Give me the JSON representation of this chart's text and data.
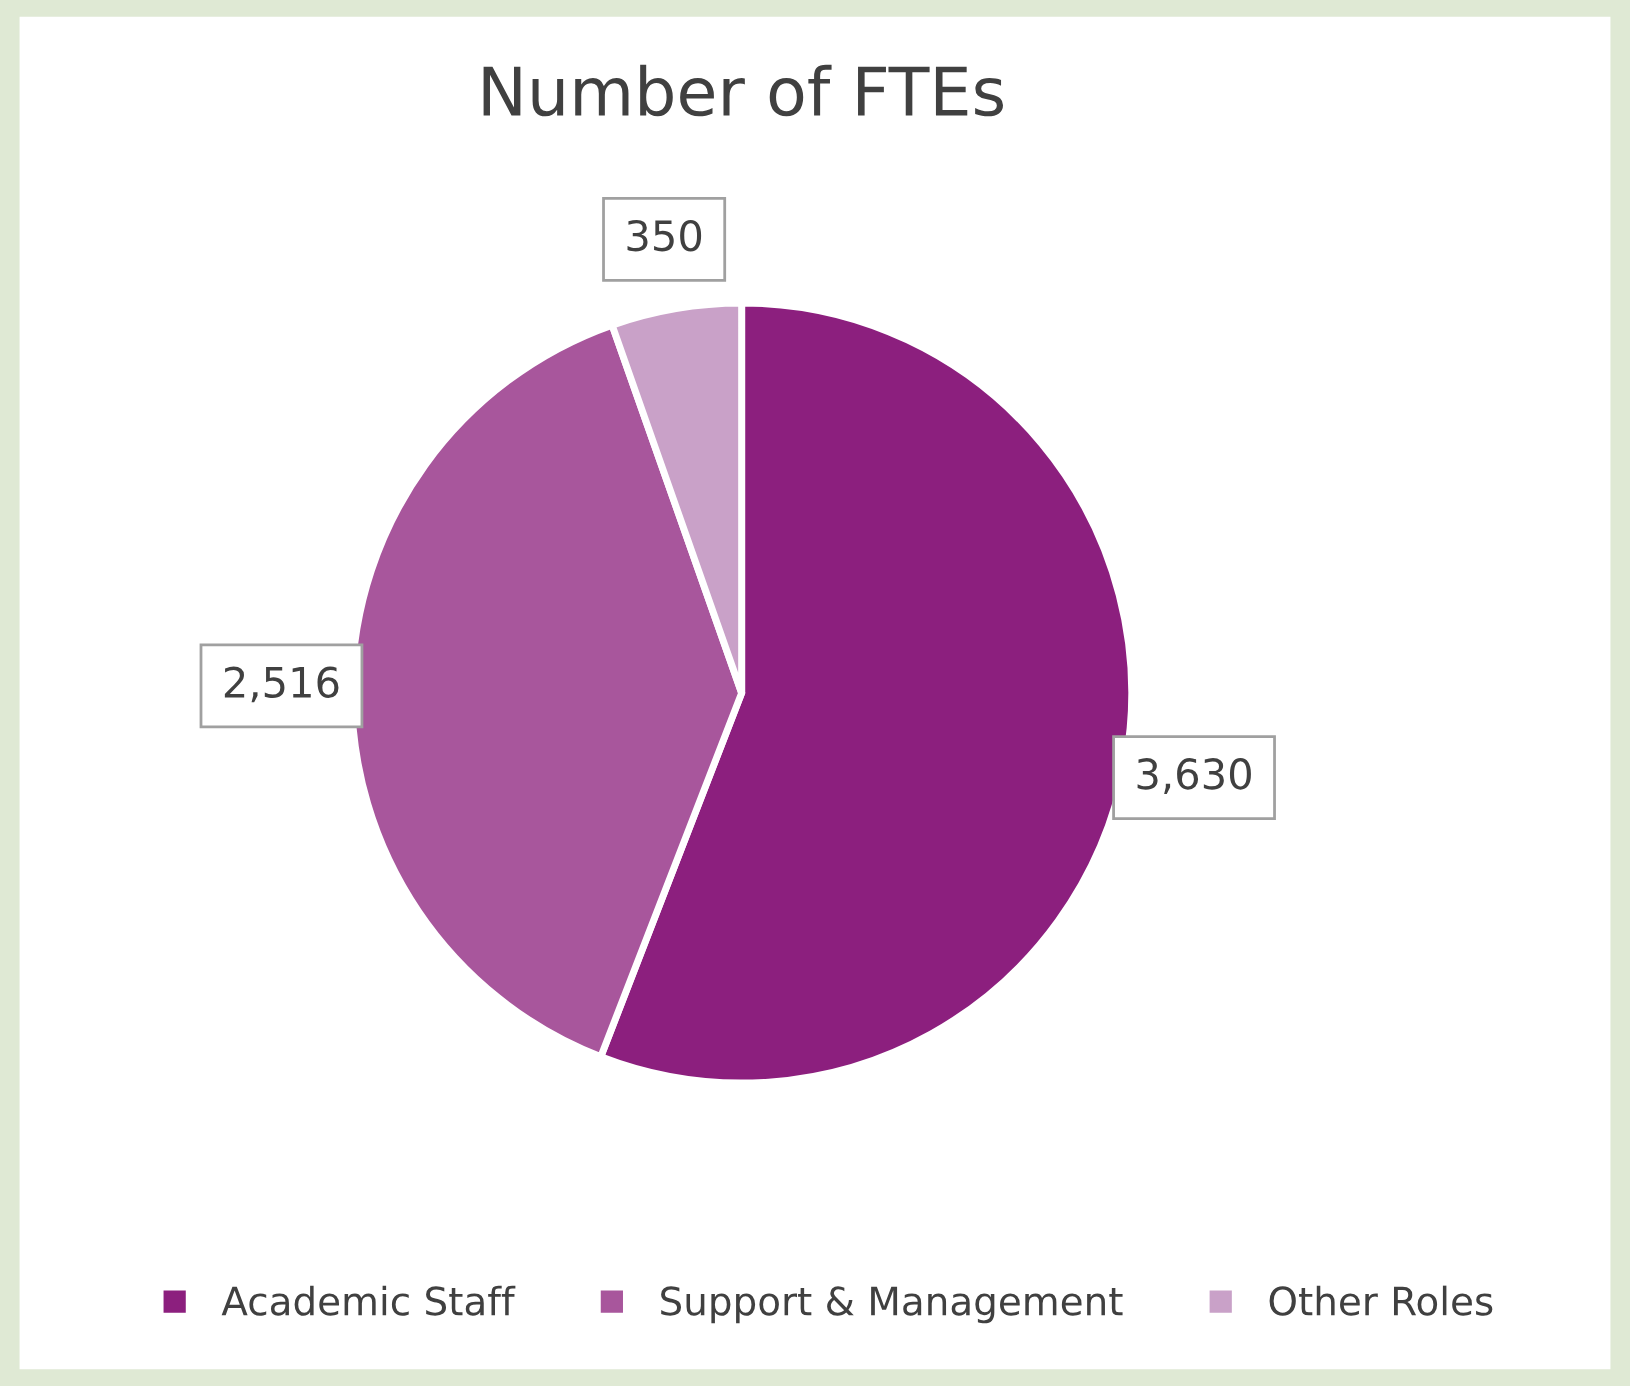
{
  "chart_data": {
    "type": "pie",
    "title": "Number of FTEs",
    "categories": [
      "Academic Staff",
      "Support & Management",
      "Other Roles"
    ],
    "values": [
      3630,
      2516,
      350
    ],
    "colors": [
      "#8c1f7e",
      "#a8569c",
      "#c9a1c8"
    ],
    "value_labels": [
      "3,630",
      "2,516",
      "350"
    ],
    "legend": "bottom"
  }
}
